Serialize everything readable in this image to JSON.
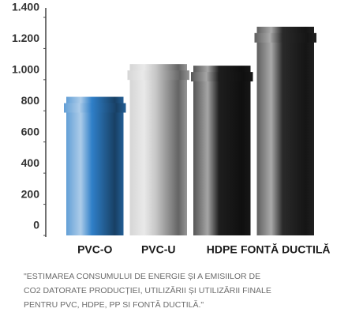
{
  "chart_data": {
    "type": "bar",
    "categories": [
      "PVC-O",
      "PVC-U",
      "HDPE",
      "FONTĂ DUCTILĂ"
    ],
    "values": [
      890,
      1100,
      1090,
      1340
    ],
    "colors": [
      "#2f7fc8",
      "#c8c8c8",
      "#1e1e1e",
      "#2a2a2a"
    ],
    "ylim": [
      0,
      1400
    ],
    "yticks": [
      0,
      200,
      400,
      600,
      800,
      {
        "value": 1000,
        "label": "1.000"
      },
      {
        "value": 1200,
        "label": "1.200"
      },
      {
        "value": 1400,
        "label": "1.400"
      }
    ],
    "annotation": [
      "\"ESTIMAREA CONSUMULUI DE ENERGIE ȘI A EMISIILOR DE",
      "CO2 DATORATE PRODUCȚIEI, UTILIZĂRII ȘI UTILIZĂRII FINALE",
      "PENTRU PVC, HDPE, PP SI FONTĂ DUCTILĂ.\""
    ]
  }
}
